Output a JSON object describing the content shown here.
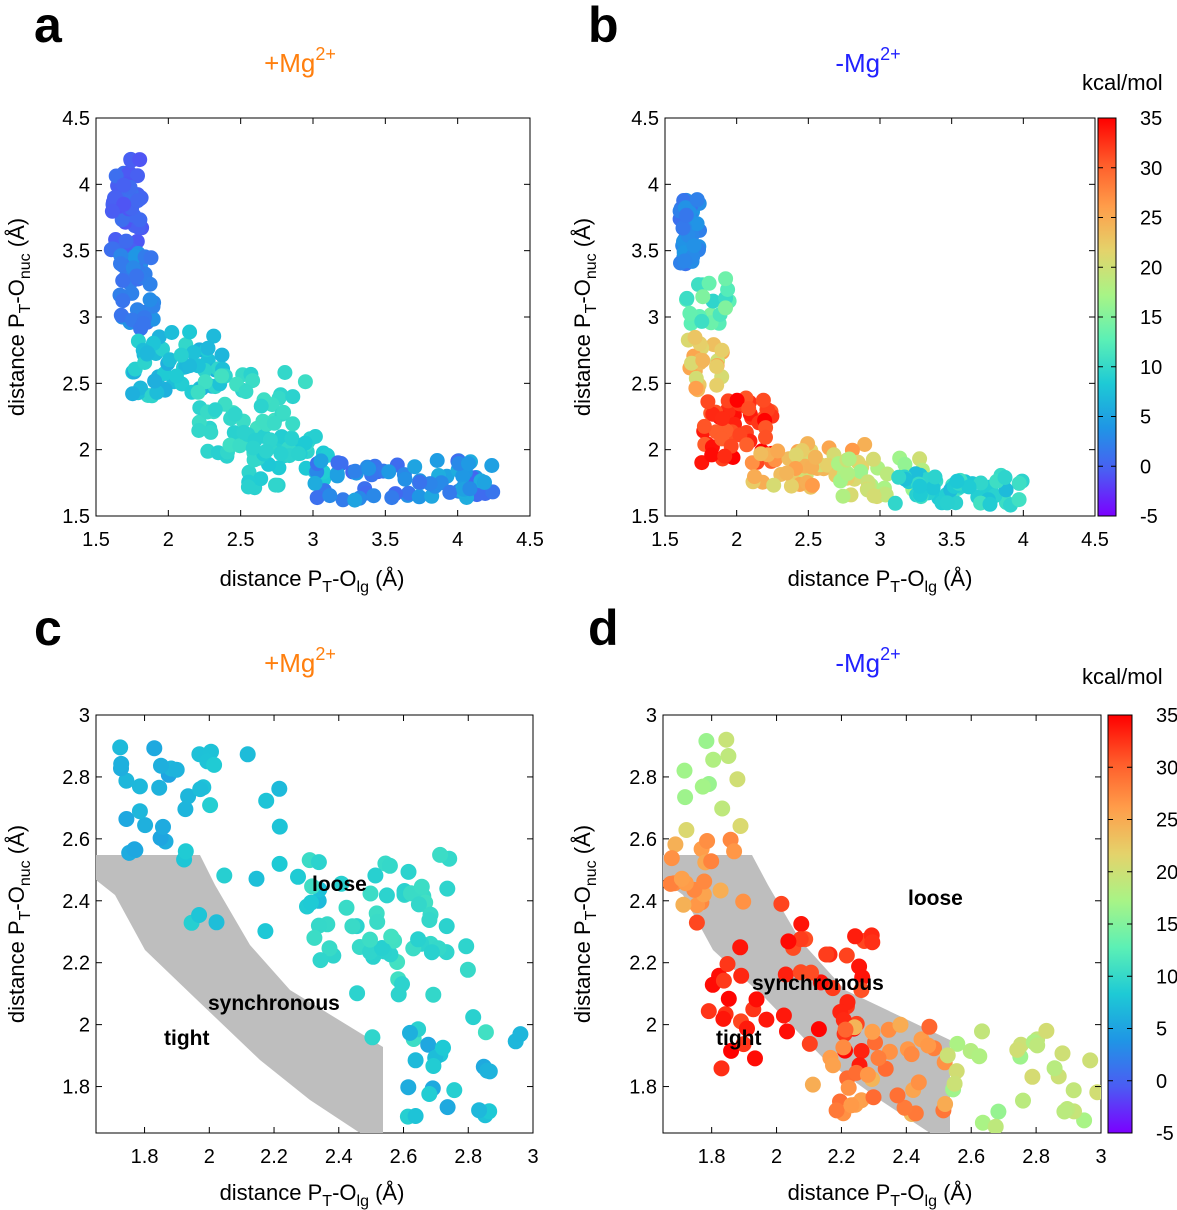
{
  "colormap": [
    "#7b00ff",
    "#4b5cf3",
    "#1f96e5",
    "#1ecad5",
    "#5cf0b5",
    "#a8f486",
    "#e4d36b",
    "#ff9d4a",
    "#ff5a29",
    "#ff0000"
  ],
  "colorbar": {
    "unit": "kcal/mol",
    "ticks": [
      "-5",
      "0",
      "5",
      "10",
      "15",
      "20",
      "25",
      "30",
      "35"
    ],
    "range": [
      -5,
      35
    ]
  },
  "chart_data": [
    {
      "panel": "a",
      "type": "scatter",
      "title": "+Mg2+",
      "title_base": "+Mg",
      "title_sup": "2+",
      "title_color": "#ff7f0e",
      "xlabel": "distance PT-Olg (Å)",
      "ylabel": "distance PT-Onuc (Å)",
      "xlim": [
        1.5,
        4.5
      ],
      "ylim": [
        1.5,
        4.5
      ],
      "xticks": [
        "1.5",
        "2",
        "2.5",
        "3",
        "3.5",
        "4",
        "4.5"
      ],
      "yticks": [
        "1.5",
        "2",
        "2.5",
        "3",
        "3.5",
        "4",
        "4.5"
      ],
      "seed": 11,
      "clusters": [
        {
          "n": 55,
          "x": [
            1.6,
            1.82
          ],
          "y": [
            3.45,
            4.2
          ],
          "c": [
            -1,
            1
          ]
        },
        {
          "n": 40,
          "x": [
            1.65,
            1.9
          ],
          "y": [
            2.9,
            3.5
          ],
          "c": [
            1,
            4
          ]
        },
        {
          "n": 55,
          "x": [
            1.75,
            2.4
          ],
          "y": [
            2.4,
            2.9
          ],
          "c": [
            6,
            10
          ]
        },
        {
          "n": 60,
          "x": [
            2.2,
            3.0
          ],
          "y": [
            1.95,
            2.6
          ],
          "c": [
            9,
            11
          ]
        },
        {
          "n": 35,
          "x": [
            2.5,
            3.1
          ],
          "y": [
            1.7,
            2.1
          ],
          "c": [
            8,
            10
          ]
        },
        {
          "n": 70,
          "x": [
            3.0,
            4.25
          ],
          "y": [
            1.62,
            1.92
          ],
          "c": [
            0,
            6
          ]
        }
      ]
    },
    {
      "panel": "b",
      "type": "scatter",
      "title": "-Mg2+",
      "title_base": "-Mg",
      "title_sup": "2+",
      "title_color": "#2222ff",
      "xlabel": "distance PT-Olg (Å)",
      "ylabel": "distance PT-Onuc (Å)",
      "xlim": [
        1.5,
        4.5
      ],
      "ylim": [
        1.5,
        4.5
      ],
      "xticks": [
        "1.5",
        "2",
        "2.5",
        "3",
        "3.5",
        "4",
        "4.5"
      ],
      "yticks": [
        "1.5",
        "2",
        "2.5",
        "3",
        "3.5",
        "4",
        "4.5"
      ],
      "seed": 29,
      "clusters": [
        {
          "n": 40,
          "x": [
            1.6,
            1.75
          ],
          "y": [
            3.35,
            3.95
          ],
          "c": [
            1,
            4
          ]
        },
        {
          "n": 20,
          "x": [
            1.65,
            1.95
          ],
          "y": [
            2.9,
            3.3
          ],
          "c": [
            9,
            15
          ]
        },
        {
          "n": 25,
          "x": [
            1.65,
            1.9
          ],
          "y": [
            2.45,
            2.85
          ],
          "c": [
            20,
            26
          ]
        },
        {
          "n": 55,
          "x": [
            1.75,
            2.25
          ],
          "y": [
            1.9,
            2.4
          ],
          "c": [
            30,
            35
          ]
        },
        {
          "n": 45,
          "x": [
            2.1,
            2.9
          ],
          "y": [
            1.7,
            2.05
          ],
          "c": [
            20,
            27
          ]
        },
        {
          "n": 30,
          "x": [
            2.7,
            3.3
          ],
          "y": [
            1.62,
            1.95
          ],
          "c": [
            16,
            21
          ]
        },
        {
          "n": 55,
          "x": [
            3.1,
            4.0
          ],
          "y": [
            1.58,
            1.82
          ],
          "c": [
            7,
            11
          ]
        }
      ]
    },
    {
      "panel": "c",
      "type": "scatter",
      "title": "+Mg2+",
      "title_base": "+Mg",
      "title_sup": "2+",
      "title_color": "#ff7f0e",
      "xlabel": "distance PT-Olg (Å)",
      "ylabel": "distance PT-Onuc (Å)",
      "xlim": [
        1.65,
        3.0
      ],
      "ylim": [
        1.65,
        3.0
      ],
      "xticks": [
        "1.8",
        "2",
        "2.2",
        "2.4",
        "2.6",
        "2.8",
        "3"
      ],
      "yticks": [
        "1.8",
        "2",
        "2.2",
        "2.4",
        "2.6",
        "2.8",
        "3"
      ],
      "annotations": [
        "loose",
        "synchronous",
        "tight"
      ],
      "seed": 47,
      "clusters": [
        {
          "n": 22,
          "x": [
            1.72,
            1.95
          ],
          "y": [
            2.55,
            2.98
          ],
          "c": [
            5,
            7
          ]
        },
        {
          "n": 25,
          "x": [
            1.9,
            2.35
          ],
          "y": [
            2.3,
            2.9
          ],
          "c": [
            7,
            9
          ]
        },
        {
          "n": 45,
          "x": [
            2.3,
            2.75
          ],
          "y": [
            2.2,
            2.55
          ],
          "c": [
            9,
            11
          ]
        },
        {
          "n": 20,
          "x": [
            2.45,
            2.9
          ],
          "y": [
            1.95,
            2.3
          ],
          "c": [
            9,
            11
          ]
        },
        {
          "n": 22,
          "x": [
            2.6,
            2.98
          ],
          "y": [
            1.7,
            2.0
          ],
          "c": [
            5,
            9
          ]
        }
      ]
    },
    {
      "panel": "d",
      "type": "scatter",
      "title": "-Mg2+",
      "title_base": "-Mg",
      "title_sup": "2+",
      "title_color": "#2222ff",
      "xlabel": "distance PT-Olg (Å)",
      "ylabel": "distance PT-Onuc (Å)",
      "xlim": [
        1.65,
        3.0
      ],
      "ylim": [
        1.65,
        3.0
      ],
      "xticks": [
        "1.8",
        "2",
        "2.2",
        "2.4",
        "2.6",
        "2.8",
        "3"
      ],
      "yticks": [
        "1.8",
        "2",
        "2.2",
        "2.4",
        "2.6",
        "2.8",
        "3"
      ],
      "annotations": [
        "loose",
        "synchronous",
        "tight"
      ],
      "seed": 83,
      "clusters": [
        {
          "n": 12,
          "x": [
            1.67,
            1.9
          ],
          "y": [
            2.6,
            2.98
          ],
          "c": [
            16,
            21
          ]
        },
        {
          "n": 20,
          "x": [
            1.67,
            1.9
          ],
          "y": [
            2.35,
            2.6
          ],
          "c": [
            24,
            28
          ]
        },
        {
          "n": 55,
          "x": [
            1.75,
            2.3
          ],
          "y": [
            1.85,
            2.4
          ],
          "c": [
            31,
            35
          ]
        },
        {
          "n": 40,
          "x": [
            2.1,
            2.55
          ],
          "y": [
            1.7,
            2.0
          ],
          "c": [
            24,
            30
          ]
        },
        {
          "n": 30,
          "x": [
            2.5,
            3.0
          ],
          "y": [
            1.67,
            2.0
          ],
          "c": [
            16,
            21
          ]
        }
      ]
    }
  ]
}
